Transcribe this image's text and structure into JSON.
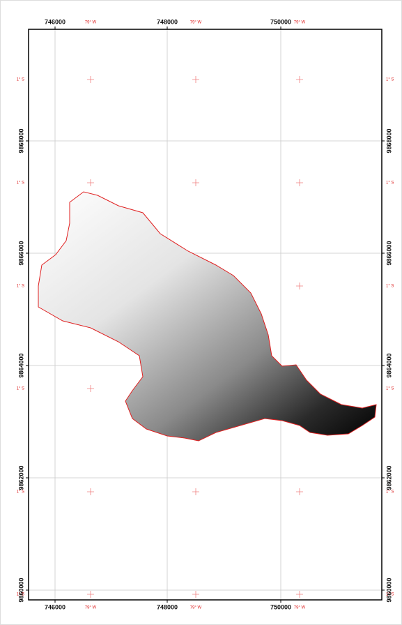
{
  "map": {
    "eastings": [
      "746000",
      "748000",
      "750000"
    ],
    "northings": [
      "9868000",
      "9866000",
      "9864000",
      "9862000",
      "9860000"
    ],
    "graticule": {
      "lon_label": "79° W",
      "lat_label": "1° S"
    }
  }
}
